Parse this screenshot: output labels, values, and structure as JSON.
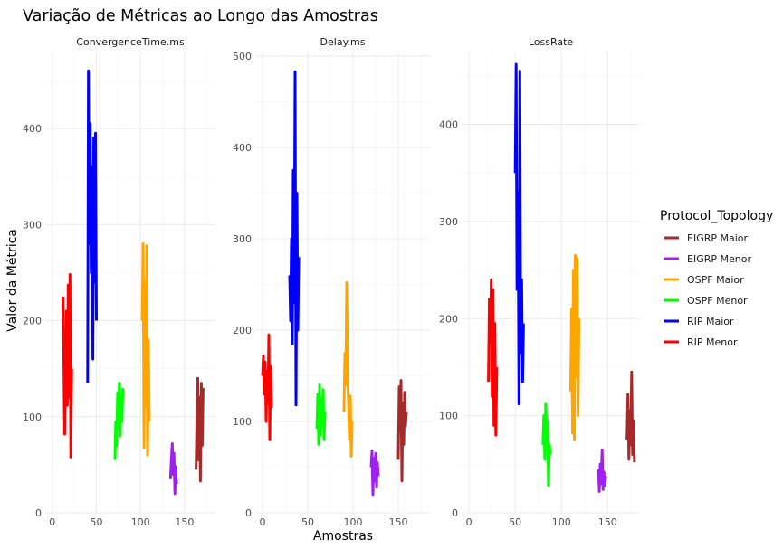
{
  "chart_data": {
    "type": "line",
    "title": "Variação de Métricas ao Longo das Amostras",
    "xlabel": "Amostras",
    "ylabel": "Valor da Métrica",
    "legend": {
      "title": "Protocol_Topology",
      "position": "right",
      "entries": [
        {
          "label": "EIGRP Maior",
          "color": "#a52a2a"
        },
        {
          "label": "EIGRP Menor",
          "color": "#a020f0"
        },
        {
          "label": "OSPF Maior",
          "color": "#ffa500"
        },
        {
          "label": "OSPF Menor",
          "color": "#00ff00"
        },
        {
          "label": "RIP Maior",
          "color": "#0000ff"
        },
        {
          "label": "RIP Menor",
          "color": "#ff0000"
        }
      ]
    },
    "facets": [
      {
        "name": "ConvergenceTime.ms",
        "xlim": [
          -8,
          185
        ],
        "ylim": [
          0,
          480
        ],
        "xticks": [
          0,
          50,
          100,
          150
        ],
        "yticks": [
          0,
          100,
          200,
          300,
          400
        ],
        "series": [
          {
            "name": "RIP Menor",
            "color": "#ff0000",
            "x": [
              12,
              13,
              14,
              15,
              16,
              17,
              18,
              19,
              20,
              21,
              22
            ],
            "y": [
              225,
              160,
              82,
              145,
              210,
              112,
              237,
              120,
              248,
              58,
              150
            ]
          },
          {
            "name": "RIP Maior",
            "color": "#0000ff",
            "x": [
              40,
              41,
              42,
              43,
              44,
              45,
              46,
              47,
              48,
              49,
              50
            ],
            "y": [
              135,
              460,
              280,
              405,
              250,
              360,
              160,
              390,
              240,
              395,
              200
            ]
          },
          {
            "name": "OSPF Menor",
            "color": "#00ff00",
            "x": [
              71,
              72,
              73,
              74,
              75,
              76,
              77,
              78,
              79,
              80
            ],
            "y": [
              55,
              95,
              70,
              125,
              88,
              135,
              80,
              120,
              95,
              130
            ]
          },
          {
            "name": "OSPF Maior",
            "color": "#ffa500",
            "x": [
              102,
              103,
              104,
              105,
              106,
              107,
              108,
              109,
              110
            ],
            "y": [
              200,
              280,
              68,
              240,
              110,
              278,
              60,
              180,
              95
            ]
          },
          {
            "name": "EIGRP Menor",
            "color": "#a020f0",
            "x": [
              134,
              135,
              136,
              137,
              138,
              139,
              140,
              141
            ],
            "y": [
              35,
              55,
              72,
              40,
              62,
              20,
              48,
              30
            ]
          },
          {
            "name": "EIGRP Maior",
            "color": "#a52a2a",
            "x": [
              163,
              164,
              165,
              166,
              167,
              168,
              169,
              170,
              171
            ],
            "y": [
              45,
              100,
              140,
              55,
              120,
              33,
              135,
              70,
              130
            ]
          }
        ]
      },
      {
        "name": "Delay.ms",
        "xlim": [
          -8,
          185
        ],
        "ylim": [
          0,
          505
        ],
        "xticks": [
          0,
          50,
          100,
          150
        ],
        "yticks": [
          0,
          100,
          200,
          300,
          400,
          500
        ],
        "series": [
          {
            "name": "RIP Menor",
            "color": "#ff0000",
            "x": [
              0,
              1,
              2,
              3,
              4,
              5,
              6,
              7,
              8,
              9,
              10
            ],
            "y": [
              150,
              172,
              130,
              165,
              100,
              155,
              120,
              195,
              80,
              160,
              115
            ]
          },
          {
            "name": "RIP Maior",
            "color": "#0000ff",
            "x": [
              30,
              31,
              32,
              33,
              34,
              35,
              36,
              37,
              38,
              39,
              40
            ],
            "y": [
              260,
              210,
              300,
              185,
              375,
              230,
              483,
              118,
              350,
              200,
              280
            ]
          },
          {
            "name": "OSPF Menor",
            "color": "#00ff00",
            "x": [
              60,
              61,
              62,
              63,
              64,
              65,
              66,
              67,
              68,
              69
            ],
            "y": [
              92,
              130,
              75,
              140,
              85,
              125,
              95,
              135,
              80,
              110
            ]
          },
          {
            "name": "OSPF Maior",
            "color": "#ffa500",
            "x": [
              90,
              91,
              92,
              93,
              94,
              95,
              96,
              97,
              98,
              99
            ],
            "y": [
              110,
              175,
              140,
              252,
              150,
              120,
              80,
              128,
              62,
              100
            ]
          },
          {
            "name": "EIGRP Menor",
            "color": "#a020f0",
            "x": [
              120,
              121,
              122,
              123,
              124,
              125,
              126,
              127,
              128
            ],
            "y": [
              50,
              68,
              20,
              60,
              35,
              65,
              28,
              55,
              40
            ]
          },
          {
            "name": "EIGRP Maior",
            "color": "#a52a2a",
            "x": [
              150,
              151,
              152,
              153,
              154,
              155,
              156,
              157,
              158,
              159
            ],
            "y": [
              58,
              138,
              90,
              145,
              35,
              120,
              75,
              132,
              95,
              110
            ]
          }
        ]
      },
      {
        "name": "LossRate",
        "xlim": [
          -8,
          185
        ],
        "ylim": [
          0,
          475
        ],
        "xticks": [
          0,
          50,
          100,
          150
        ],
        "yticks": [
          0,
          100,
          200,
          300,
          400
        ],
        "series": [
          {
            "name": "RIP Menor",
            "color": "#ff0000",
            "x": [
              21,
              22,
              23,
              24,
              25,
              26,
              27,
              28,
              29,
              30
            ],
            "y": [
              135,
              220,
              175,
              240,
              120,
              230,
              90,
              195,
              80,
              150
            ]
          },
          {
            "name": "RIP Maior",
            "color": "#0000ff",
            "x": [
              50,
              51,
              52,
              53,
              54,
              55,
              56,
              57,
              58,
              59
            ],
            "y": [
              350,
              462,
              230,
              330,
              112,
              455,
              165,
              240,
              135,
              195
            ]
          },
          {
            "name": "OSPF Menor",
            "color": "#00ff00",
            "x": [
              80,
              81,
              82,
              83,
              84,
              85,
              86,
              87,
              88
            ],
            "y": [
              70,
              100,
              55,
              112,
              85,
              95,
              28,
              70,
              60
            ]
          },
          {
            "name": "OSPF Maior",
            "color": "#ffa500",
            "x": [
              110,
              111,
              112,
              113,
              114,
              115,
              116,
              117,
              118,
              119
            ],
            "y": [
              125,
              210,
              82,
              250,
              75,
              265,
              140,
              262,
              100,
              200
            ]
          },
          {
            "name": "EIGRP Menor",
            "color": "#a020f0",
            "x": [
              140,
              141,
              142,
              143,
              144,
              145,
              146,
              147,
              148
            ],
            "y": [
              45,
              22,
              50,
              30,
              65,
              24,
              42,
              28,
              38
            ]
          },
          {
            "name": "EIGRP Maior",
            "color": "#a52a2a",
            "x": [
              171,
              172,
              173,
              174,
              175,
              176,
              177,
              178,
              179
            ],
            "y": [
              75,
              122,
              55,
              105,
              70,
              145,
              60,
              95,
              52
            ]
          }
        ]
      }
    ]
  }
}
